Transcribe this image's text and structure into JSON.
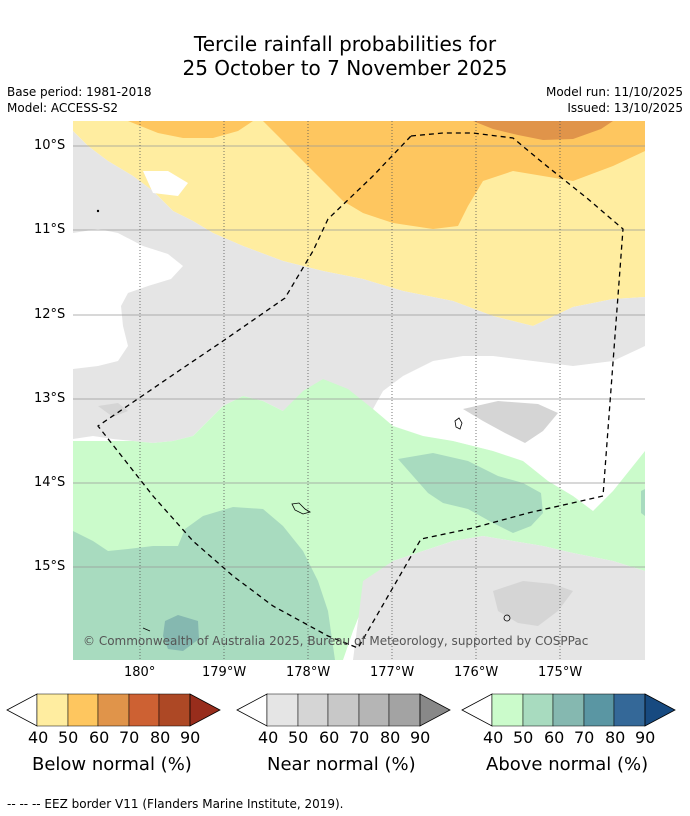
{
  "title": {
    "line1": "Tercile rainfall probabilities for",
    "line2": "25 October to 7 November 2025"
  },
  "meta": {
    "base_period": "Base period: 1981-2018",
    "model": "Model: ACCESS-S2",
    "model_run": "Model run: 11/10/2025",
    "issued": "Issued: 13/10/2025"
  },
  "map": {
    "lat_labels": [
      "10°S",
      "11°S",
      "12°S",
      "13°S",
      "14°S",
      "15°S"
    ],
    "lon_labels": [
      "180°",
      "179°W",
      "178°W",
      "177°W",
      "176°W",
      "175°W"
    ],
    "credit": "© Commonwealth of Australia 2025, Bureau of Meteorology, supported by COSPPac"
  },
  "legend": {
    "ticks": [
      "40",
      "50",
      "60",
      "70",
      "80",
      "90"
    ],
    "below": {
      "title": "Below normal (%)",
      "colors": [
        "#ffeda0",
        "#fec65f",
        "#e0944a",
        "#cd6133",
        "#ad4825",
        "#982d1c"
      ]
    },
    "near": {
      "title": "Near normal (%)",
      "colors": [
        "#e5e5e5",
        "#d5d5d5",
        "#c8c8c8",
        "#b5b5b5",
        "#a3a3a3",
        "#888888"
      ]
    },
    "above": {
      "title": "Above normal (%)",
      "colors": [
        "#cbfbcb",
        "#a8dbbf",
        "#85b8b0",
        "#5a96a3",
        "#346898",
        "#174a80"
      ]
    }
  },
  "footer": {
    "eez_note": "-- -- -- EEZ border V11 (Flanders Marine Institute, 2019)."
  }
}
